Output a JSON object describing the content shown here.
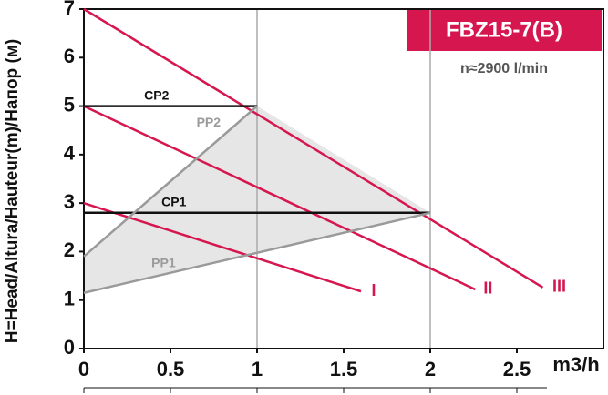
{
  "chart_data": {
    "type": "line",
    "title": "FBZ15-7(B)",
    "subtitle": "n≈2900 l/min",
    "y_label": "H=Head/Altura/Hauteur(m)/Напор (м)",
    "x_label": "m3/h",
    "xlim": [
      0,
      3
    ],
    "ylim": [
      0,
      7
    ],
    "xticks": [
      0,
      0.5,
      1,
      1.5,
      2,
      2.5
    ],
    "yticks": [
      0,
      1,
      2,
      3,
      4,
      5,
      6,
      7
    ],
    "series": [
      {
        "name": "I",
        "color": "#d6174f",
        "x": [
          0,
          1.6
        ],
        "values": [
          3,
          1.18
        ]
      },
      {
        "name": "II",
        "color": "#d6174f",
        "x": [
          0,
          2.26
        ],
        "values": [
          5,
          1.22
        ]
      },
      {
        "name": "III",
        "color": "#d6174f",
        "x": [
          0,
          2.65
        ],
        "values": [
          7,
          1.26
        ]
      },
      {
        "name": "CP2",
        "color": "#111111",
        "x": [
          0,
          1
        ],
        "values": [
          5,
          5
        ]
      },
      {
        "name": "CP1",
        "color": "#111111",
        "x": [
          0,
          2
        ],
        "values": [
          2.8,
          2.8
        ]
      },
      {
        "name": "PP2",
        "color": "#9a9a9a",
        "x": [
          0,
          1
        ],
        "values": [
          1.9,
          5
        ]
      },
      {
        "name": "PP1",
        "color": "#9a9a9a",
        "x": [
          0,
          2
        ],
        "values": [
          1.15,
          2.8
        ]
      }
    ]
  }
}
